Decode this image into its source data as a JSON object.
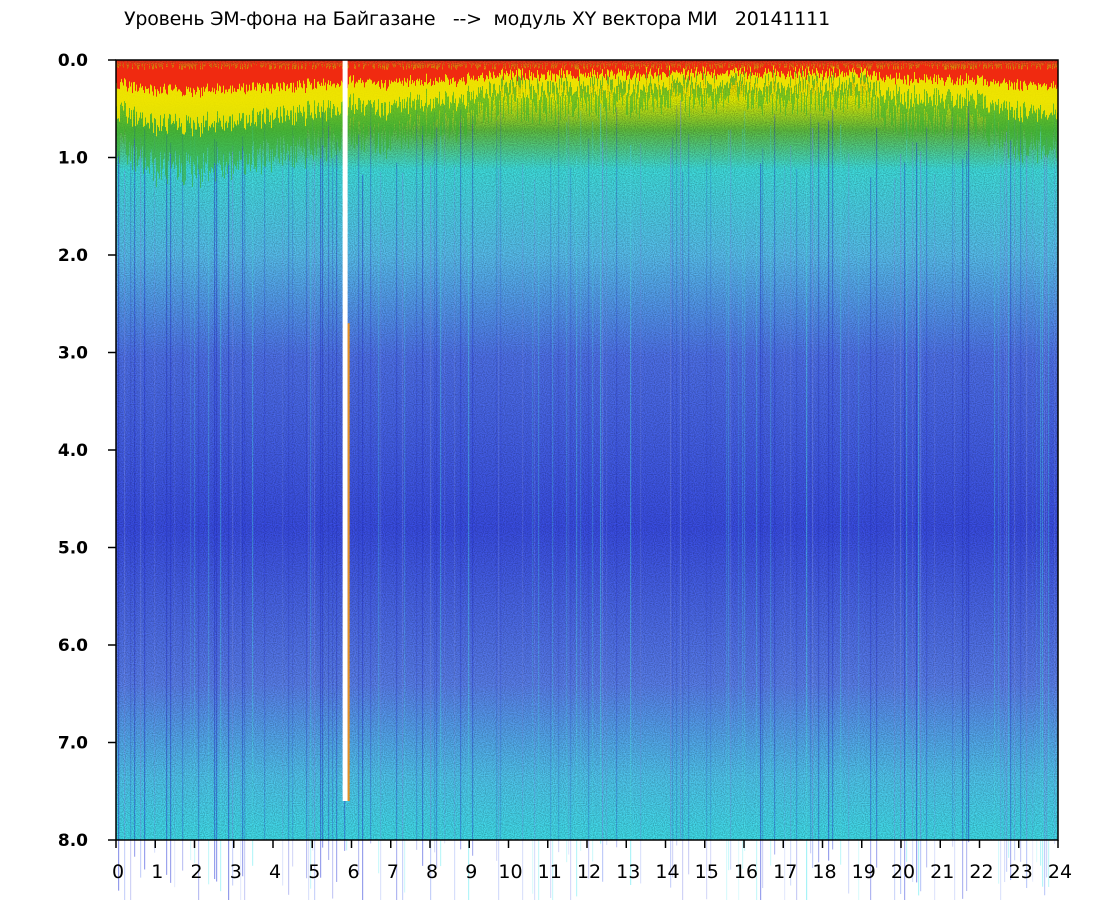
{
  "title": "Уровень ЭМ-фона на Байгазане   -->  модуль XY вектора МИ   20141111",
  "chart_data": {
    "type": "heatmap",
    "title": "Уровень ЭМ-фона на Байгазане   -->  модуль XY вектора МИ   20141111",
    "xlabel": "",
    "ylabel": "",
    "xlim": [
      0,
      24
    ],
    "ylim": [
      0,
      8
    ],
    "y_inverted": true,
    "x_ticks": [
      "0",
      "1",
      "2",
      "3",
      "4",
      "5",
      "6",
      "7",
      "8",
      "9",
      "10",
      "11",
      "12",
      "13",
      "14",
      "15",
      "16",
      "17",
      "18",
      "19",
      "20",
      "21",
      "22",
      "23",
      "24"
    ],
    "y_ticks": [
      "0.0",
      "1.0",
      "2.0",
      "3.0",
      "4.0",
      "5.0",
      "6.0",
      "7.0",
      "8.0"
    ],
    "colorscale": [
      "#1010e0",
      "#6a7cf0",
      "#40e8e8",
      "#10a010",
      "#f0f000",
      "#f0a000",
      "#f02020"
    ],
    "grid": false,
    "description_series": [
      {
        "name": "",
        "x": [
          0,
          1,
          2,
          3,
          4,
          5,
          6,
          7,
          8,
          9,
          10,
          11,
          12,
          13,
          14,
          15,
          16,
          17,
          18,
          19,
          20,
          21,
          22,
          23,
          24
        ],
        "values": [
          0.8,
          1.0,
          1.0,
          0.95,
          0.85,
          0.8,
          0.7,
          0.7,
          0.6,
          0.55,
          0.35,
          0.4,
          0.35,
          0.35,
          0.3,
          0.3,
          0.3,
          0.3,
          0.3,
          0.3,
          0.55,
          0.5,
          0.6,
          0.75,
          0.8
        ]
      }
    ],
    "gap_x": 5.85
  }
}
